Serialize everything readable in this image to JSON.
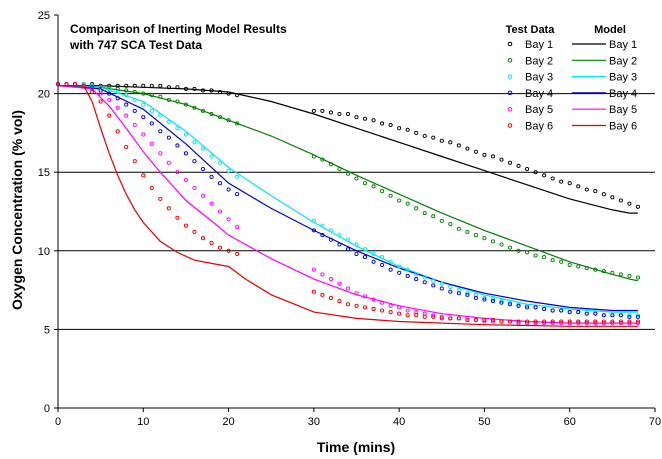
{
  "chart_data": {
    "type": "line",
    "title_lines": [
      "Comparison of Inerting Model Results",
      "with 747 SCA Test Data"
    ],
    "xlabel": "Time (mins)",
    "ylabel": "Oxygen Concentration (% vol)",
    "xlim": [
      0,
      70
    ],
    "ylim": [
      0,
      25
    ],
    "xticks": [
      "0",
      "10",
      "20",
      "30",
      "40",
      "50",
      "60",
      "70"
    ],
    "yticks": [
      "0",
      "5",
      "10",
      "15",
      "20",
      "25"
    ],
    "grid": "horizontal",
    "legend_position": "top-right",
    "legend_headers": {
      "test": "Test Data",
      "model": "Model"
    },
    "series": [
      {
        "name": "Bay 1",
        "color": "#000000",
        "test_data": {
          "x": [
            0,
            1,
            2,
            3,
            4,
            5,
            6,
            7,
            8,
            9,
            10,
            11,
            12,
            13,
            14,
            15,
            16,
            17,
            18,
            19,
            20,
            21,
            30,
            31,
            32,
            33,
            34,
            35,
            36,
            37,
            38,
            39,
            40,
            41,
            42,
            43,
            44,
            45,
            46,
            47,
            48,
            49,
            50,
            51,
            52,
            53,
            54,
            55,
            56,
            57,
            58,
            59,
            60,
            61,
            62,
            63,
            64,
            65,
            66,
            67,
            68
          ],
          "y": [
            20.6,
            20.6,
            20.6,
            20.6,
            20.6,
            20.5,
            20.5,
            20.5,
            20.5,
            20.5,
            20.5,
            20.5,
            20.5,
            20.4,
            20.4,
            20.3,
            20.3,
            20.2,
            20.2,
            20.1,
            20.0,
            19.9,
            18.9,
            18.9,
            18.8,
            18.7,
            18.7,
            18.5,
            18.4,
            18.3,
            18.1,
            18.0,
            17.8,
            17.7,
            17.5,
            17.3,
            17.2,
            17.0,
            16.9,
            16.7,
            16.5,
            16.3,
            16.1,
            16.0,
            15.8,
            15.6,
            15.4,
            15.2,
            15.0,
            14.8,
            14.6,
            14.4,
            14.3,
            14.1,
            13.9,
            13.8,
            13.6,
            13.4,
            13.2,
            13.0,
            12.8
          ]
        },
        "model": {
          "x": [
            0,
            5,
            10,
            15,
            20,
            25,
            30,
            35,
            40,
            45,
            50,
            55,
            60,
            65,
            67,
            68
          ],
          "y": [
            20.5,
            20.5,
            20.4,
            20.3,
            20.1,
            19.5,
            18.7,
            17.8,
            16.9,
            16.0,
            15.1,
            14.2,
            13.3,
            12.6,
            12.4,
            12.4
          ]
        }
      },
      {
        "name": "Bay 2",
        "color": "#008000",
        "test_data": {
          "x": [
            0,
            1,
            2,
            3,
            4,
            5,
            6,
            7,
            8,
            9,
            10,
            11,
            12,
            13,
            14,
            15,
            16,
            17,
            18,
            19,
            20,
            21,
            30,
            31,
            32,
            33,
            34,
            35,
            36,
            37,
            38,
            39,
            40,
            41,
            42,
            43,
            44,
            45,
            46,
            47,
            48,
            49,
            50,
            51,
            52,
            53,
            54,
            55,
            56,
            57,
            58,
            59,
            60,
            61,
            62,
            63,
            64,
            65,
            66,
            67,
            68
          ],
          "y": [
            20.6,
            20.6,
            20.6,
            20.6,
            20.5,
            20.4,
            20.4,
            20.3,
            20.2,
            20.1,
            20.0,
            19.9,
            19.8,
            19.6,
            19.5,
            19.3,
            19.1,
            18.9,
            18.7,
            18.5,
            18.3,
            18.1,
            16.0,
            15.8,
            15.5,
            15.2,
            14.9,
            14.6,
            14.3,
            14.1,
            13.8,
            13.5,
            13.2,
            13.0,
            12.7,
            12.4,
            12.2,
            11.9,
            11.7,
            11.4,
            11.2,
            11.0,
            10.8,
            10.6,
            10.4,
            10.2,
            10.0,
            9.9,
            9.7,
            9.6,
            9.4,
            9.3,
            9.1,
            9.0,
            8.9,
            8.8,
            8.7,
            8.6,
            8.5,
            8.4,
            8.3
          ]
        },
        "model": {
          "x": [
            0,
            5,
            10,
            15,
            20,
            25,
            30,
            35,
            40,
            45,
            50,
            55,
            60,
            65,
            67,
            68
          ],
          "y": [
            20.5,
            20.4,
            20.0,
            19.3,
            18.3,
            17.3,
            16.1,
            14.8,
            13.6,
            12.4,
            11.3,
            10.3,
            9.3,
            8.5,
            8.2,
            8.1
          ]
        }
      },
      {
        "name": "Bay 3",
        "color": "#00e5ee",
        "test_data": {
          "x": [
            0,
            1,
            2,
            3,
            4,
            5,
            6,
            7,
            8,
            9,
            10,
            11,
            12,
            13,
            14,
            15,
            16,
            17,
            18,
            19,
            20,
            21,
            30,
            31,
            32,
            33,
            34,
            35,
            36,
            37,
            38,
            39,
            40,
            41,
            42,
            43,
            44,
            45,
            46,
            47,
            48,
            49,
            50,
            51,
            52,
            53,
            54,
            55,
            56,
            57,
            58,
            59,
            60,
            61,
            62,
            63,
            64,
            65,
            66,
            67,
            68
          ],
          "y": [
            20.6,
            20.6,
            20.6,
            20.6,
            20.5,
            20.4,
            20.3,
            20.1,
            19.9,
            19.6,
            19.3,
            18.9,
            18.6,
            18.2,
            17.8,
            17.4,
            16.9,
            16.5,
            16.0,
            15.6,
            15.1,
            14.7,
            11.9,
            11.6,
            11.3,
            11.0,
            10.7,
            10.4,
            10.1,
            9.8,
            9.6,
            9.3,
            9.0,
            8.8,
            8.5,
            8.3,
            8.1,
            7.9,
            7.7,
            7.5,
            7.3,
            7.2,
            7.0,
            6.9,
            6.8,
            6.7,
            6.6,
            6.5,
            6.4,
            6.3,
            6.2,
            6.2,
            6.1,
            6.1,
            6.0,
            6.0,
            5.9,
            5.9,
            5.9,
            5.9,
            5.9
          ]
        },
        "model": {
          "x": [
            0,
            5,
            10,
            15,
            20,
            25,
            30,
            35,
            40,
            45,
            50,
            55,
            60,
            65,
            68
          ],
          "y": [
            20.5,
            20.4,
            19.5,
            17.6,
            15.3,
            13.5,
            11.8,
            10.3,
            9.0,
            8.0,
            7.2,
            6.6,
            6.3,
            6.1,
            6.1
          ]
        }
      },
      {
        "name": "Bay 4",
        "color": "#0000cc",
        "test_data": {
          "x": [
            0,
            1,
            2,
            3,
            4,
            5,
            6,
            7,
            8,
            9,
            10,
            11,
            12,
            13,
            14,
            15,
            16,
            17,
            18,
            19,
            20,
            21,
            30,
            31,
            32,
            33,
            34,
            35,
            36,
            37,
            38,
            39,
            40,
            41,
            42,
            43,
            44,
            45,
            46,
            47,
            48,
            49,
            50,
            51,
            52,
            53,
            54,
            55,
            56,
            57,
            58,
            59,
            60,
            61,
            62,
            63,
            64,
            65,
            66,
            67,
            68
          ],
          "y": [
            20.6,
            20.6,
            20.6,
            20.5,
            20.4,
            20.2,
            20.0,
            19.7,
            19.3,
            18.9,
            18.5,
            18.1,
            17.6,
            17.2,
            16.7,
            16.2,
            15.7,
            15.2,
            14.7,
            14.3,
            13.9,
            13.6,
            11.3,
            11.0,
            10.7,
            10.4,
            10.1,
            9.8,
            9.6,
            9.3,
            9.1,
            8.8,
            8.6,
            8.4,
            8.2,
            8.0,
            7.8,
            7.6,
            7.4,
            7.3,
            7.2,
            7.0,
            6.9,
            6.8,
            6.7,
            6.6,
            6.5,
            6.4,
            6.4,
            6.3,
            6.2,
            6.2,
            6.1,
            6.1,
            6.0,
            6.0,
            5.9,
            5.9,
            5.9,
            5.8,
            5.8
          ]
        },
        "model": {
          "x": [
            0,
            5,
            10,
            15,
            20,
            25,
            30,
            35,
            40,
            45,
            50,
            55,
            60,
            65,
            68
          ],
          "y": [
            20.5,
            20.3,
            19.0,
            16.8,
            14.3,
            12.7,
            11.3,
            10.0,
            8.9,
            8.0,
            7.3,
            6.8,
            6.4,
            6.2,
            6.2
          ]
        }
      },
      {
        "name": "Bay 5",
        "color": "#ff00ff",
        "test_data": {
          "x": [
            0,
            1,
            2,
            3,
            4,
            5,
            6,
            7,
            8,
            9,
            10,
            11,
            12,
            13,
            14,
            15,
            16,
            17,
            18,
            19,
            20,
            21,
            30,
            31,
            32,
            33,
            34,
            35,
            36,
            37,
            38,
            39,
            40,
            41,
            42,
            43,
            44,
            45,
            46,
            47,
            48,
            49,
            50,
            51,
            52,
            53,
            54,
            55,
            56,
            57,
            58,
            59,
            60,
            61,
            62,
            63,
            64,
            65,
            66,
            67,
            68
          ],
          "y": [
            20.6,
            20.6,
            20.6,
            20.5,
            20.3,
            20.0,
            19.6,
            19.1,
            18.6,
            18.0,
            17.4,
            16.8,
            16.2,
            15.6,
            15.0,
            14.5,
            14.0,
            13.5,
            13.0,
            12.5,
            12.0,
            11.5,
            8.8,
            8.5,
            8.2,
            7.9,
            7.6,
            7.3,
            7.1,
            6.9,
            6.7,
            6.5,
            6.4,
            6.2,
            6.1,
            6.0,
            5.9,
            5.8,
            5.7,
            5.7,
            5.6,
            5.6,
            5.5,
            5.5,
            5.5,
            5.5,
            5.4,
            5.4,
            5.4,
            5.4,
            5.4,
            5.4,
            5.4,
            5.4,
            5.4,
            5.4,
            5.4,
            5.4,
            5.4,
            5.4,
            5.4
          ]
        },
        "model": {
          "x": [
            0,
            4,
            6,
            8,
            10,
            12,
            15,
            18,
            20,
            25,
            30,
            35,
            40,
            45,
            50,
            55,
            60,
            65,
            68
          ],
          "y": [
            20.5,
            20.3,
            19.2,
            17.8,
            16.3,
            15.0,
            13.2,
            11.9,
            11.0,
            9.5,
            8.2,
            7.2,
            6.5,
            6.0,
            5.7,
            5.5,
            5.4,
            5.4,
            5.4
          ]
        }
      },
      {
        "name": "Bay 6",
        "color": "#e00000",
        "test_data": {
          "x": [
            0,
            1,
            2,
            3,
            4,
            5,
            6,
            7,
            8,
            9,
            10,
            11,
            12,
            13,
            14,
            15,
            16,
            17,
            18,
            19,
            20,
            21,
            30,
            31,
            32,
            33,
            34,
            35,
            36,
            37,
            38,
            39,
            40,
            41,
            42,
            43,
            44,
            45,
            46,
            47,
            48,
            49,
            50,
            51,
            52,
            53,
            54,
            55,
            56,
            57,
            58,
            59,
            60,
            61,
            62,
            63,
            64,
            65,
            66,
            67,
            68
          ],
          "y": [
            20.6,
            20.6,
            20.6,
            20.5,
            20.1,
            19.5,
            18.6,
            17.6,
            16.6,
            15.7,
            14.8,
            14.0,
            13.3,
            12.7,
            12.1,
            11.6,
            11.2,
            10.8,
            10.5,
            10.2,
            10.0,
            9.8,
            7.4,
            7.2,
            7.0,
            6.8,
            6.6,
            6.5,
            6.4,
            6.3,
            6.2,
            6.1,
            6.0,
            5.9,
            5.9,
            5.8,
            5.8,
            5.7,
            5.7,
            5.7,
            5.6,
            5.6,
            5.6,
            5.6,
            5.5,
            5.5,
            5.5,
            5.5,
            5.5,
            5.5,
            5.5,
            5.5,
            5.5,
            5.5,
            5.5,
            5.5,
            5.5,
            5.5,
            5.5,
            5.5,
            5.5
          ]
        },
        "model": {
          "x": [
            0,
            3,
            4,
            5,
            6,
            7,
            8,
            9,
            10,
            12,
            14,
            16,
            18,
            20,
            22,
            25,
            30,
            35,
            40,
            50,
            60,
            68
          ],
          "y": [
            20.5,
            20.5,
            19.5,
            17.8,
            16.2,
            14.8,
            13.6,
            12.6,
            11.8,
            10.6,
            9.9,
            9.4,
            9.2,
            9.0,
            8.2,
            7.2,
            6.1,
            5.7,
            5.5,
            5.3,
            5.2,
            5.2
          ]
        }
      }
    ]
  }
}
